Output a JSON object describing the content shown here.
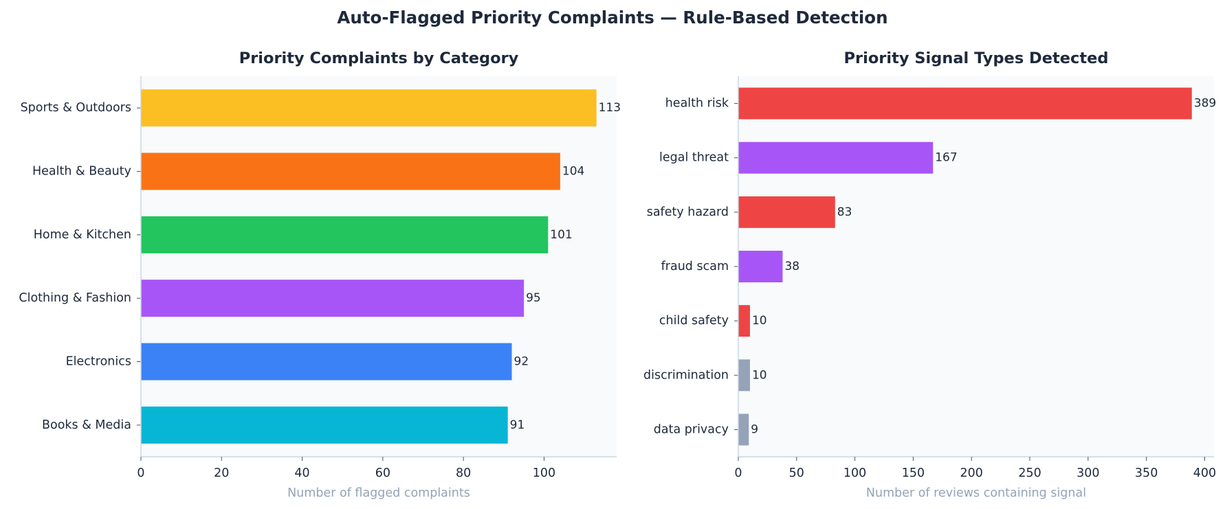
{
  "suptitle": "Auto-Flagged Priority Complaints — Rule-Based Detection",
  "chart_data": [
    {
      "type": "bar",
      "orientation": "horizontal",
      "title": "Priority Complaints by Category",
      "xlabel": "Number of flagged complaints",
      "ylabel": "",
      "xlim": [
        0,
        118
      ],
      "xticks": [
        0,
        20,
        40,
        60,
        80,
        100
      ],
      "grid": false,
      "categories": [
        "Sports & Outdoors",
        "Health & Beauty",
        "Home & Kitchen",
        "Clothing & Fashion",
        "Electronics",
        "Books & Media"
      ],
      "values": [
        113,
        104,
        101,
        95,
        92,
        91
      ],
      "colors": [
        "#fbbf24",
        "#f97316",
        "#22c55e",
        "#a855f7",
        "#3b82f6",
        "#06b6d4"
      ]
    },
    {
      "type": "bar",
      "orientation": "horizontal",
      "title": "Priority Signal Types Detected",
      "xlabel": "Number of reviews containing signal",
      "ylabel": "",
      "xlim": [
        0,
        408
      ],
      "xticks": [
        0,
        50,
        100,
        150,
        200,
        250,
        300,
        350,
        400
      ],
      "grid": false,
      "categories": [
        "health risk",
        "legal threat",
        "safety hazard",
        "fraud scam",
        "child safety",
        "discrimination",
        "data privacy"
      ],
      "values": [
        389,
        167,
        83,
        38,
        10,
        10,
        9
      ],
      "colors": [
        "#ef4444",
        "#a855f7",
        "#ef4444",
        "#a855f7",
        "#ef4444",
        "#94a3b8",
        "#94a3b8"
      ]
    }
  ]
}
